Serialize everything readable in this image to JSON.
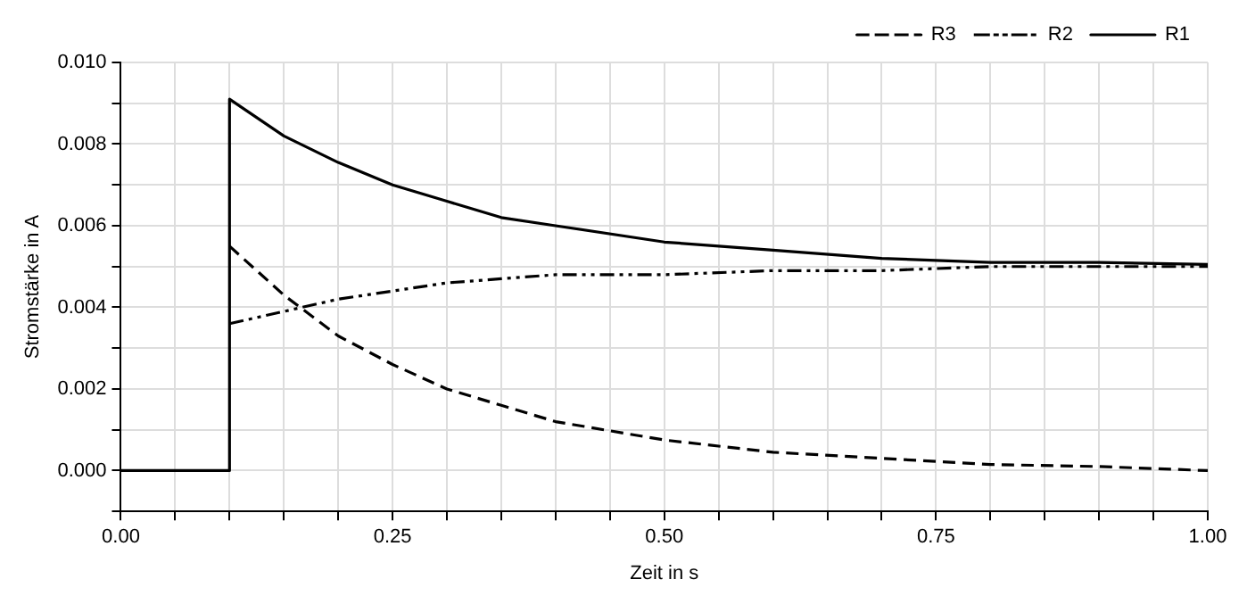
{
  "chart_data": {
    "type": "line",
    "xlabel": "Zeit in s",
    "ylabel": "Stromstärke in A",
    "series": [
      {
        "name": "R3",
        "color": "#000000",
        "line_style": "dashed",
        "x": [
          0.1,
          0.15,
          0.2,
          0.25,
          0.3,
          0.35,
          0.4,
          0.5,
          0.6,
          0.7,
          0.8,
          0.9,
          1.0
        ],
        "values": [
          0.0055,
          0.0043,
          0.0033,
          0.0026,
          0.002,
          0.0016,
          0.0012,
          0.00075,
          0.00045,
          0.0003,
          0.00015,
          0.0001,
          0.0
        ]
      },
      {
        "name": "R2",
        "color": "#000000",
        "line_style": "dotted",
        "x": [
          0.1,
          0.15,
          0.2,
          0.25,
          0.3,
          0.35,
          0.4,
          0.5,
          0.6,
          0.7,
          0.8,
          0.9,
          1.0
        ],
        "values": [
          0.0036,
          0.0039,
          0.0042,
          0.0044,
          0.0046,
          0.0047,
          0.0048,
          0.0048,
          0.0049,
          0.0049,
          0.005,
          0.005,
          0.005
        ]
      },
      {
        "name": "R1",
        "color": "#000000",
        "line_style": "solid",
        "x": [
          0.0,
          0.1,
          0.1,
          0.15,
          0.2,
          0.25,
          0.3,
          0.35,
          0.4,
          0.5,
          0.6,
          0.7,
          0.8,
          0.9,
          1.0
        ],
        "values": [
          0.0,
          0.0,
          0.0091,
          0.0082,
          0.00755,
          0.007,
          0.0066,
          0.0062,
          0.006,
          0.0056,
          0.0054,
          0.0052,
          0.0051,
          0.0051,
          0.00505
        ]
      }
    ],
    "xlim": [
      0,
      1
    ],
    "xticks": [
      {
        "value": 0,
        "label": "0.00"
      },
      {
        "value": 0.05,
        "label": null
      },
      {
        "value": 0.1,
        "label": null
      },
      {
        "value": 0.15,
        "label": null
      },
      {
        "value": 0.2,
        "label": null
      },
      {
        "value": 0.25,
        "label": "0.25"
      },
      {
        "value": 0.3,
        "label": null
      },
      {
        "value": 0.35,
        "label": null
      },
      {
        "value": 0.4,
        "label": null
      },
      {
        "value": 0.45,
        "label": null
      },
      {
        "value": 0.5,
        "label": "0.50"
      },
      {
        "value": 0.55,
        "label": null
      },
      {
        "value": 0.6,
        "label": null
      },
      {
        "value": 0.65,
        "label": null
      },
      {
        "value": 0.7,
        "label": null
      },
      {
        "value": 0.75,
        "label": "0.75"
      },
      {
        "value": 0.8,
        "label": null
      },
      {
        "value": 0.85,
        "label": null
      },
      {
        "value": 0.9,
        "label": null
      },
      {
        "value": 0.95,
        "label": null
      },
      {
        "value": 1,
        "label": "1.00"
      }
    ],
    "ylim": [
      -0.001,
      0.01
    ],
    "yticks": [
      {
        "value": -0.001,
        "label": null
      },
      {
        "value": 0,
        "label": "0.000"
      },
      {
        "value": 0.001,
        "label": null
      },
      {
        "value": 0.002,
        "label": "0.002"
      },
      {
        "value": 0.003,
        "label": null
      },
      {
        "value": 0.004,
        "label": "0.004"
      },
      {
        "value": 0.005,
        "label": null
      },
      {
        "value": 0.006,
        "label": "0.006"
      },
      {
        "value": 0.007,
        "label": null
      },
      {
        "value": 0.008,
        "label": "0.008"
      },
      {
        "value": 0.009,
        "label": null
      },
      {
        "value": 0.01,
        "label": "0.010"
      }
    ],
    "grid": true,
    "legend": "top right",
    "marker": "none"
  }
}
